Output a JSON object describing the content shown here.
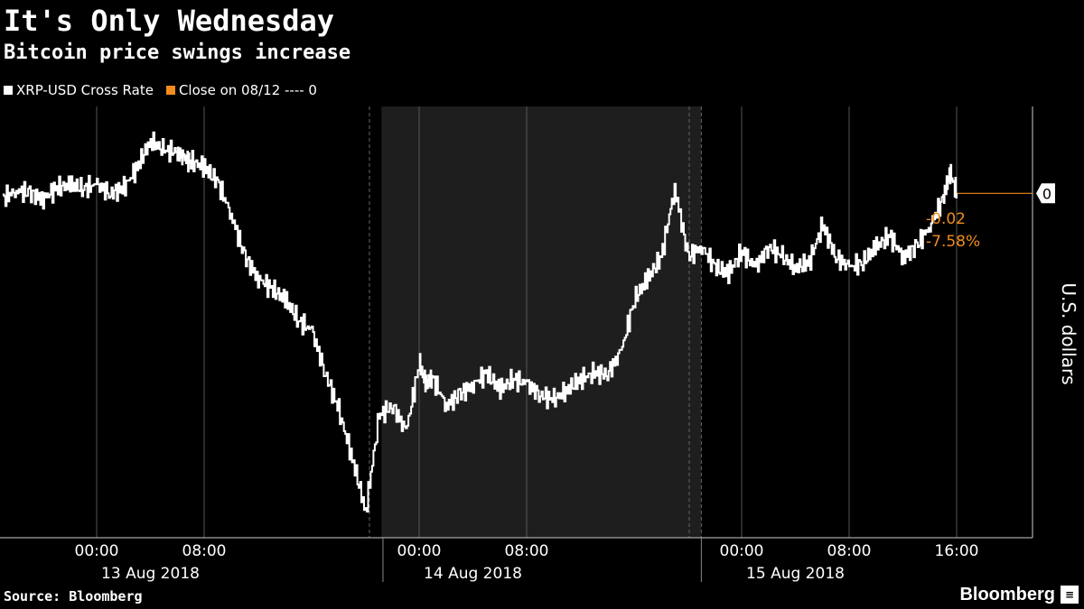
{
  "header": {
    "title": "It's Only Wednesday",
    "subtitle": "Bitcoin price swings increase"
  },
  "legend": {
    "items": [
      {
        "label": "XRP-USD Cross Rate",
        "color": "#ffffff"
      },
      {
        "label": "Close on 08/12 ---- 0",
        "color": "#f28c1e"
      }
    ]
  },
  "footer": {
    "source": "Source: Bloomberg",
    "brand": "Bloomberg"
  },
  "chart_data": {
    "type": "line",
    "title": "It's Only Wednesday",
    "subtitle": "Bitcoin price swings increase",
    "ylabel": "U.S. dollars",
    "y_marker_label": "0",
    "annotations": [
      "-0.02",
      "-7.58%"
    ],
    "x_tick_labels": [
      "00:00",
      "08:00",
      "00:00",
      "08:00",
      "00:00",
      "08:00",
      "16:00"
    ],
    "date_labels": [
      "13 Aug 2018",
      "14 Aug 2018",
      "15 Aug 2018"
    ],
    "shaded_region": {
      "from_hour": 21.2,
      "to_hour": 45.0
    },
    "x_range_hours": [
      -7,
      65
    ],
    "y_range_relative": [
      -0.0325,
      0.0082
    ],
    "series": [
      {
        "name": "XRP-USD Cross Rate",
        "color": "#ffffff",
        "x_hours": [
          -7,
          -6,
          -5,
          -4,
          -3,
          -2,
          -1,
          0,
          1,
          2,
          3,
          4,
          5,
          6,
          6.5,
          7,
          8,
          9,
          10,
          11,
          12,
          13,
          14,
          15,
          16,
          17,
          18,
          19,
          20,
          21,
          22,
          23,
          24,
          24.5,
          25,
          26,
          27,
          28,
          29,
          30,
          31,
          32,
          33,
          34,
          35,
          36,
          37,
          38,
          39,
          40,
          41,
          42,
          43,
          44,
          45,
          46,
          47,
          48,
          49,
          50,
          51,
          52,
          53,
          54,
          55,
          56,
          57,
          58,
          59,
          60,
          61,
          62,
          63,
          63.5,
          64
        ],
        "y_rel": [
          -0.0005,
          0.0003,
          0.0,
          -0.0005,
          0.0005,
          0.0008,
          0.0005,
          0.0008,
          0.0,
          0.0005,
          0.0025,
          0.005,
          0.004,
          0.004,
          0.0033,
          0.003,
          0.0025,
          0.001,
          -0.002,
          -0.006,
          -0.008,
          -0.009,
          -0.01,
          -0.012,
          -0.013,
          -0.017,
          -0.0205,
          -0.025,
          -0.03,
          -0.021,
          -0.02,
          -0.0225,
          -0.016,
          -0.018,
          -0.0175,
          -0.02,
          -0.019,
          -0.018,
          -0.017,
          -0.0185,
          -0.0175,
          -0.018,
          -0.019,
          -0.0195,
          -0.0185,
          -0.0175,
          -0.017,
          -0.017,
          -0.015,
          -0.01,
          -0.008,
          -0.006,
          0.0005,
          -0.006,
          -0.005,
          -0.007,
          -0.0075,
          -0.0055,
          -0.007,
          -0.005,
          -0.006,
          -0.007,
          -0.0065,
          -0.003,
          -0.006,
          -0.007,
          -0.0065,
          -0.005,
          -0.004,
          -0.006,
          -0.005,
          -0.003,
          -0.0005,
          0.002,
          0.0
        ]
      },
      {
        "name": "Close on 08/12 ---- 0",
        "color": "#f28c1e",
        "x_hours": [
          64,
          72
        ],
        "y_rel": [
          0,
          0
        ]
      }
    ]
  }
}
